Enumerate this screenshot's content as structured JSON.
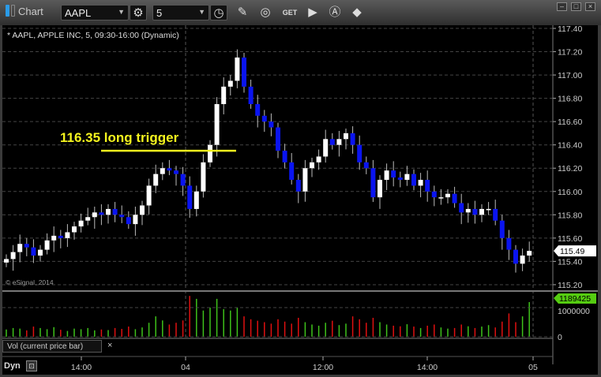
{
  "window": {
    "title": "Chart",
    "controls": [
      "–",
      "□",
      "×"
    ]
  },
  "toolbar": {
    "symbol": "AAPL",
    "interval": "5",
    "icons": [
      "settings-gear-icon",
      "clock-icon",
      "pencil-icon",
      "study-icon",
      "get-data-icon",
      "play-icon",
      "alert-icon",
      "cursor-tool-icon"
    ]
  },
  "chart_header": "* AAPL, APPLE INC, 5, 09:30-16:00 (Dynamic)",
  "copyright": "© eSignal, 2014",
  "annotation": {
    "text": "116.35 long trigger",
    "price": 116.35,
    "color": "#f5f51e"
  },
  "volume_panel": {
    "label": "Vol (current price bar)",
    "close_label": "×",
    "last_value": "1189425",
    "ticks": [
      "1000000",
      "0"
    ]
  },
  "time_axis": {
    "labels": [
      "14:00",
      "04",
      "12:00",
      "14:00",
      "05"
    ]
  },
  "footer": {
    "mode": "Dyn"
  },
  "colors": {
    "up": "#ffffff",
    "down": "#0a14f0",
    "vol_up": "#3ec21a",
    "vol_down": "#e01010",
    "last_price_bg": "#ffffff",
    "last_vol_bg": "#55cc11"
  },
  "chart_data": {
    "type": "candlestick",
    "price_axis": {
      "ticks": [
        "117.40",
        "117.20",
        "117.00",
        "116.80",
        "116.60",
        "116.40",
        "116.20",
        "116.00",
        "115.80",
        "115.60",
        "115.40",
        "115.20"
      ],
      "range": [
        115.2,
        117.4
      ],
      "last": "115.49"
    },
    "closes": [
      115.42,
      115.48,
      115.55,
      115.52,
      115.45,
      115.5,
      115.58,
      115.62,
      115.6,
      115.65,
      115.7,
      115.75,
      115.78,
      115.82,
      115.8,
      115.85,
      115.8,
      115.78,
      115.72,
      115.8,
      115.88,
      116.05,
      116.15,
      116.2,
      116.18,
      116.15,
      116.05,
      115.85,
      116.0,
      116.25,
      116.4,
      116.75,
      116.9,
      116.95,
      117.15,
      116.9,
      116.75,
      116.65,
      116.6,
      116.55,
      116.35,
      116.25,
      116.1,
      116.0,
      116.2,
      116.25,
      116.3,
      116.45,
      116.4,
      116.45,
      116.5,
      116.4,
      116.25,
      116.2,
      115.95,
      116.1,
      116.18,
      116.12,
      116.1,
      116.15,
      116.05,
      116.1,
      116.0,
      115.95,
      115.95,
      115.98,
      115.9,
      115.82,
      115.85,
      115.8,
      115.85,
      115.85,
      115.75,
      115.6,
      115.5,
      115.38,
      115.45,
      115.49
    ],
    "volumes": [
      250000,
      300000,
      280000,
      220000,
      350000,
      300000,
      260000,
      330000,
      240000,
      200000,
      280000,
      260000,
      300000,
      220000,
      250000,
      230000,
      300000,
      270000,
      350000,
      260000,
      320000,
      480000,
      700000,
      560000,
      420000,
      480000,
      560000,
      1400000,
      1300000,
      900000,
      1000000,
      1300000,
      950000,
      900000,
      1000000,
      700000,
      600000,
      550000,
      500000,
      450000,
      600000,
      520000,
      450000,
      650000,
      500000,
      420000,
      380000,
      480000,
      550000,
      400000,
      450000,
      700000,
      600000,
      480000,
      650000,
      500000,
      420000,
      380000,
      360000,
      430000,
      350000,
      300000,
      380000,
      420000,
      320000,
      280000,
      300000,
      420000,
      360000,
      300000,
      350000,
      400000,
      320000,
      520000,
      800000,
      500000,
      700000,
      1189425
    ]
  }
}
